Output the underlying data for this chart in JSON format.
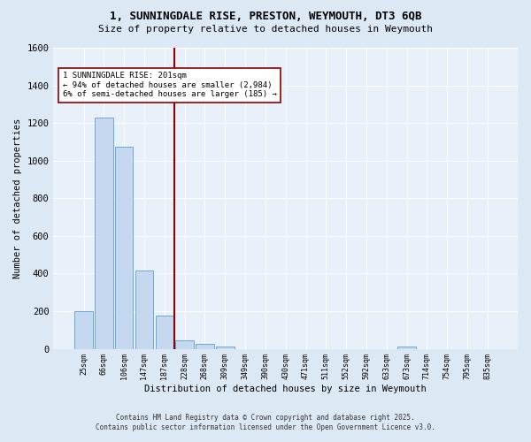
{
  "title1": "1, SUNNINGDALE RISE, PRESTON, WEYMOUTH, DT3 6QB",
  "title2": "Size of property relative to detached houses in Weymouth",
  "xlabel": "Distribution of detached houses by size in Weymouth",
  "ylabel": "Number of detached properties",
  "categories": [
    "25sqm",
    "66sqm",
    "106sqm",
    "147sqm",
    "187sqm",
    "228sqm",
    "268sqm",
    "309sqm",
    "349sqm",
    "390sqm",
    "430sqm",
    "471sqm",
    "511sqm",
    "552sqm",
    "592sqm",
    "633sqm",
    "673sqm",
    "714sqm",
    "754sqm",
    "795sqm",
    "835sqm"
  ],
  "values": [
    200,
    1230,
    1075,
    415,
    175,
    45,
    25,
    12,
    0,
    0,
    0,
    0,
    0,
    0,
    0,
    0,
    12,
    0,
    0,
    0,
    0
  ],
  "bar_color": "#c5d8f0",
  "bar_edge_color": "#6aaad4",
  "vline_index": 4.5,
  "vline_color": "#8b0000",
  "annotation_text": "1 SUNNINGDALE RISE: 201sqm\n← 94% of detached houses are smaller (2,984)\n6% of semi-detached houses are larger (185) →",
  "annotation_box_color": "#ffffff",
  "annotation_box_edge": "#8b0000",
  "ylim": [
    0,
    1600
  ],
  "yticks": [
    0,
    200,
    400,
    600,
    800,
    1000,
    1200,
    1400,
    1600
  ],
  "bg_color": "#dde8f5",
  "plot_bg_color": "#e8f0fa",
  "grid_color": "#ffffff",
  "footer1": "Contains HM Land Registry data © Crown copyright and database right 2025.",
  "footer2": "Contains public sector information licensed under the Open Government Licence v3.0."
}
